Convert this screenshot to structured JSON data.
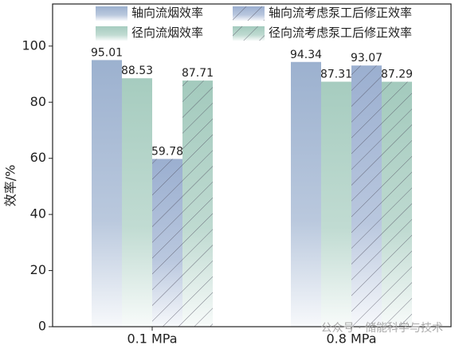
{
  "chart_data": {
    "type": "bar",
    "ylabel": "效率/%",
    "categories": [
      "0.1 MPa",
      "0.8 MPa"
    ],
    "series": [
      {
        "name": "轴向流烟效率",
        "color": "#9cb1cf",
        "hatch": false,
        "values": [
          95.01,
          94.34
        ]
      },
      {
        "name": "径向流烟效率",
        "color": "#a6ccbf",
        "hatch": false,
        "values": [
          88.53,
          87.31
        ]
      },
      {
        "name": "轴向流考虑泵工后修正效率",
        "color": "#9bafd0",
        "hatch": true,
        "values": [
          59.78,
          93.07
        ]
      },
      {
        "name": "径向流考虑泵工后修正效率",
        "color": "#a3cabd",
        "hatch": true,
        "values": [
          87.71,
          87.29
        ]
      }
    ],
    "ylim": [
      0,
      115
    ],
    "yticks": [
      0,
      20,
      40,
      60,
      80,
      100
    ],
    "watermark": "公众号 · 储能科学与技术"
  }
}
